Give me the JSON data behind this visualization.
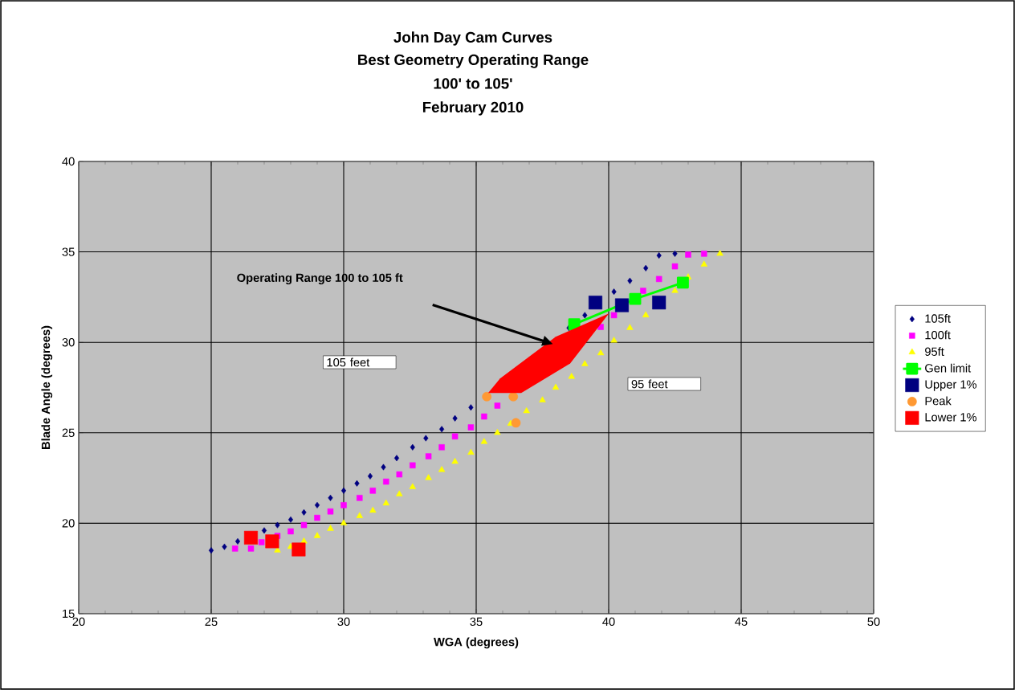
{
  "chart_data": {
    "type": "scatter",
    "title": "John Day Cam Curves",
    "subtitle": "Best Geometry Operating Range",
    "xlabel": "WGA (degrees)",
    "ylabel": "Blade Angle (degrees)",
    "xlim": [
      20,
      50
    ],
    "xticks": [
      20,
      25,
      30,
      35,
      40,
      45,
      50
    ],
    "ylim": [
      15,
      40
    ],
    "yticks": [
      15,
      20,
      25,
      30,
      35,
      40
    ],
    "grid": true,
    "legend": "right",
    "annotations": [
      "100' to 105'",
      "February 2010",
      "105 feet",
      "95 feet",
      "Operating Range 100 to 105 ft"
    ],
    "series": [
      {
        "name": "105ft",
        "marker": "diamond",
        "color": "#000080",
        "x": [
          25,
          25.5,
          26,
          26.5,
          27,
          27.5,
          28,
          28.5,
          29,
          29.5,
          30,
          30.5,
          31,
          31.5,
          32,
          32.6,
          33.1,
          33.7,
          34.2,
          34.8,
          35.3,
          35.9,
          36.4,
          36.9,
          37.5,
          38.0,
          38.5,
          39.1,
          39.7,
          40.2,
          40.8,
          41.4,
          41.9,
          42.5
        ],
        "values": [
          18.5,
          18.7,
          19.0,
          null,
          19.6,
          19.9,
          20.2,
          20.6,
          21.0,
          21.4,
          21.8,
          22.2,
          22.6,
          23.1,
          23.6,
          24.2,
          24.7,
          25.2,
          25.8,
          26.4,
          null,
          null,
          null,
          null,
          null,
          null,
          30.8,
          31.5,
          null,
          32.8,
          33.4,
          34.1,
          34.8,
          34.9
        ]
      },
      {
        "name": "100ft",
        "marker": "square",
        "color": "#ff00ff",
        "x": [
          25.9,
          26.5,
          26.9,
          27.5,
          28.0,
          28.5,
          29.0,
          29.5,
          30.0,
          30.6,
          31.1,
          31.6,
          32.1,
          32.6,
          33.2,
          33.7,
          34.2,
          34.8,
          35.3,
          35.8,
          36.4,
          36.9,
          37.5,
          38.0,
          38.5,
          39.1,
          39.7,
          40.2,
          41.3,
          41.9,
          42.5,
          43.0,
          43.6
        ],
        "values": [
          18.6,
          18.6,
          18.95,
          19.3,
          19.55,
          19.9,
          20.3,
          20.65,
          21.0,
          21.4,
          21.8,
          22.3,
          22.7,
          23.2,
          23.7,
          24.2,
          24.8,
          25.3,
          25.9,
          26.5,
          null,
          null,
          null,
          null,
          null,
          null,
          30.85,
          31.5,
          32.85,
          33.5,
          34.2,
          34.85,
          34.9
        ]
      },
      {
        "name": "95ft",
        "marker": "triangle",
        "color": "#ffff00",
        "x": [
          27.5,
          28.0,
          28.5,
          29.0,
          29.5,
          30.0,
          30.6,
          31.1,
          31.6,
          32.1,
          32.6,
          33.2,
          33.7,
          34.2,
          34.8,
          35.3,
          35.8,
          36.3,
          36.9,
          37.5,
          38.0,
          38.6,
          39.1,
          39.7,
          40.2,
          40.8,
          41.4,
          41.9,
          42.5,
          43.0,
          43.6,
          44.2
        ],
        "values": [
          18.5,
          18.7,
          19.0,
          19.3,
          19.7,
          20.0,
          20.4,
          20.7,
          21.1,
          21.6,
          22.0,
          22.5,
          22.95,
          23.4,
          23.9,
          24.5,
          25.0,
          25.5,
          26.2,
          26.8,
          27.5,
          28.1,
          28.8,
          29.4,
          30.1,
          30.8,
          31.5,
          null,
          32.85,
          33.6,
          34.3,
          34.9
        ]
      },
      {
        "name": "Gen limit",
        "type": "line",
        "marker": "square",
        "color": "#00ff00",
        "x": [
          38.7,
          41.0,
          42.8
        ],
        "values": [
          31.0,
          32.4,
          33.3
        ]
      },
      {
        "name": "Upper 1%",
        "marker": "square",
        "color": "#000080",
        "x": [
          39.5,
          40.5,
          41.9
        ],
        "values": [
          32.2,
          32.05,
          32.2
        ]
      },
      {
        "name": "Peak",
        "marker": "circle",
        "color": "#ff9933",
        "x": [
          35.4,
          36.4,
          36.5
        ],
        "values": [
          27.0,
          27.0,
          25.55
        ]
      },
      {
        "name": "Lower 1%",
        "marker": "square",
        "color": "#ff0000",
        "x": [
          26.5,
          27.3,
          28.3
        ],
        "values": [
          19.2,
          19.0,
          18.55
        ]
      }
    ]
  }
}
